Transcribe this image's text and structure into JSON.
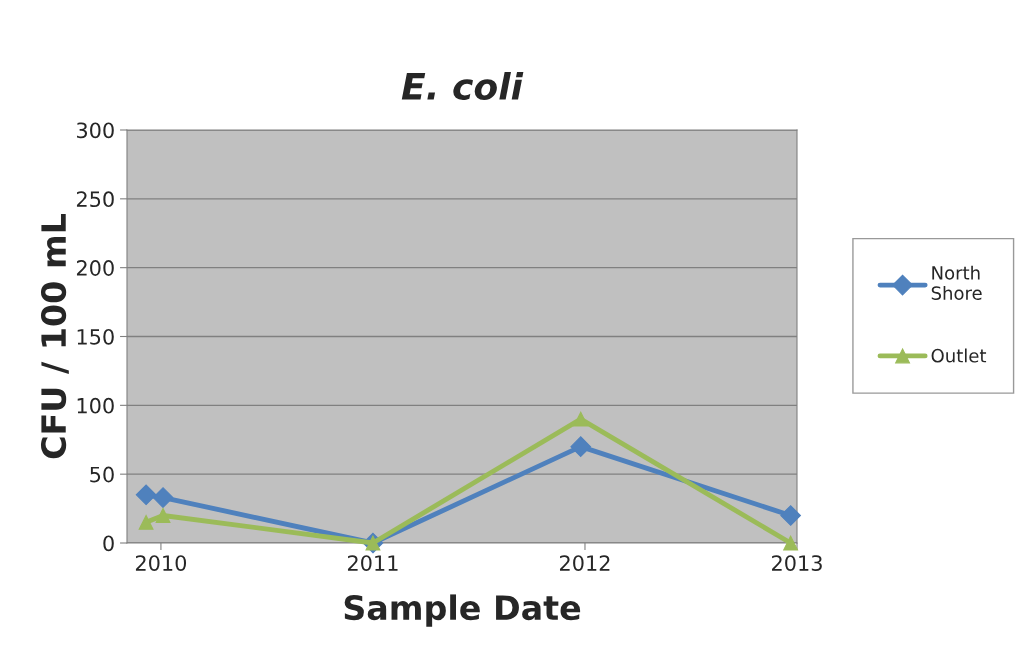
{
  "chart_data": {
    "type": "line",
    "title": "E. coli",
    "xlabel": "Sample Date",
    "ylabel": "CFU / 100 mL",
    "xlim": [
      2009.84,
      2013.0
    ],
    "xticks": [
      2010,
      2011,
      2012,
      2013
    ],
    "ylim": [
      0,
      300
    ],
    "yticks": [
      0,
      50,
      100,
      150,
      200,
      250,
      300
    ],
    "grid": "y",
    "legend": "right",
    "line_style": "solid",
    "series": [
      {
        "name": "North Shore",
        "color": "#4f81bd",
        "marker": "diamond",
        "x": [
          2009.93,
          2010.01,
          2011.0,
          2011.98,
          2012.97
        ],
        "values": [
          35,
          33,
          0,
          70,
          20
        ]
      },
      {
        "name": "Outlet",
        "color": "#9bbb59",
        "marker": "triangle",
        "x": [
          2009.93,
          2010.01,
          2011.0,
          2011.98,
          2012.97
        ],
        "values": [
          15,
          20,
          0,
          90,
          0
        ]
      }
    ]
  }
}
